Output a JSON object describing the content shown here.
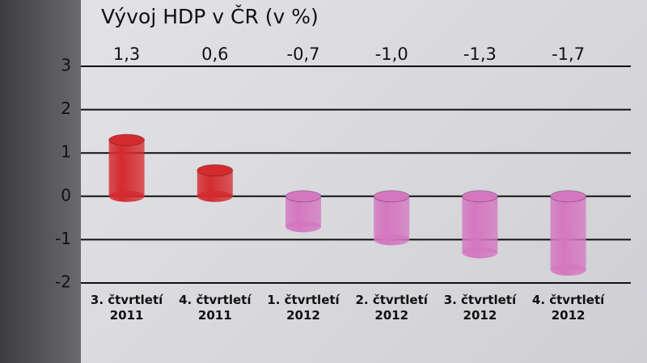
{
  "chart_data": {
    "type": "bar",
    "title": "Vývoj HDP v ČR (v %)",
    "categories": [
      "3. čtvrtletí\n2011",
      "4. čtvrtletí\n2011",
      "1. čtvrtletí\n2012",
      "2. čtvrtletí\n2012",
      "3. čtvrtletí\n2012",
      "4. čtvrtletí\n2012"
    ],
    "values": [
      1.3,
      0.6,
      -0.7,
      -1.0,
      -1.3,
      -1.7
    ],
    "value_labels": [
      "1,3",
      "0,6",
      "-0,7",
      "-1,0",
      "-1,3",
      "-1,7"
    ],
    "colors": [
      "#d42b2e",
      "#d42b2e",
      "#d477c0",
      "#d477c0",
      "#d477c0",
      "#d477c0"
    ],
    "ylim": [
      -2,
      3
    ],
    "yticks": [
      -2,
      -1,
      0,
      1,
      2,
      3
    ],
    "grid": true
  }
}
